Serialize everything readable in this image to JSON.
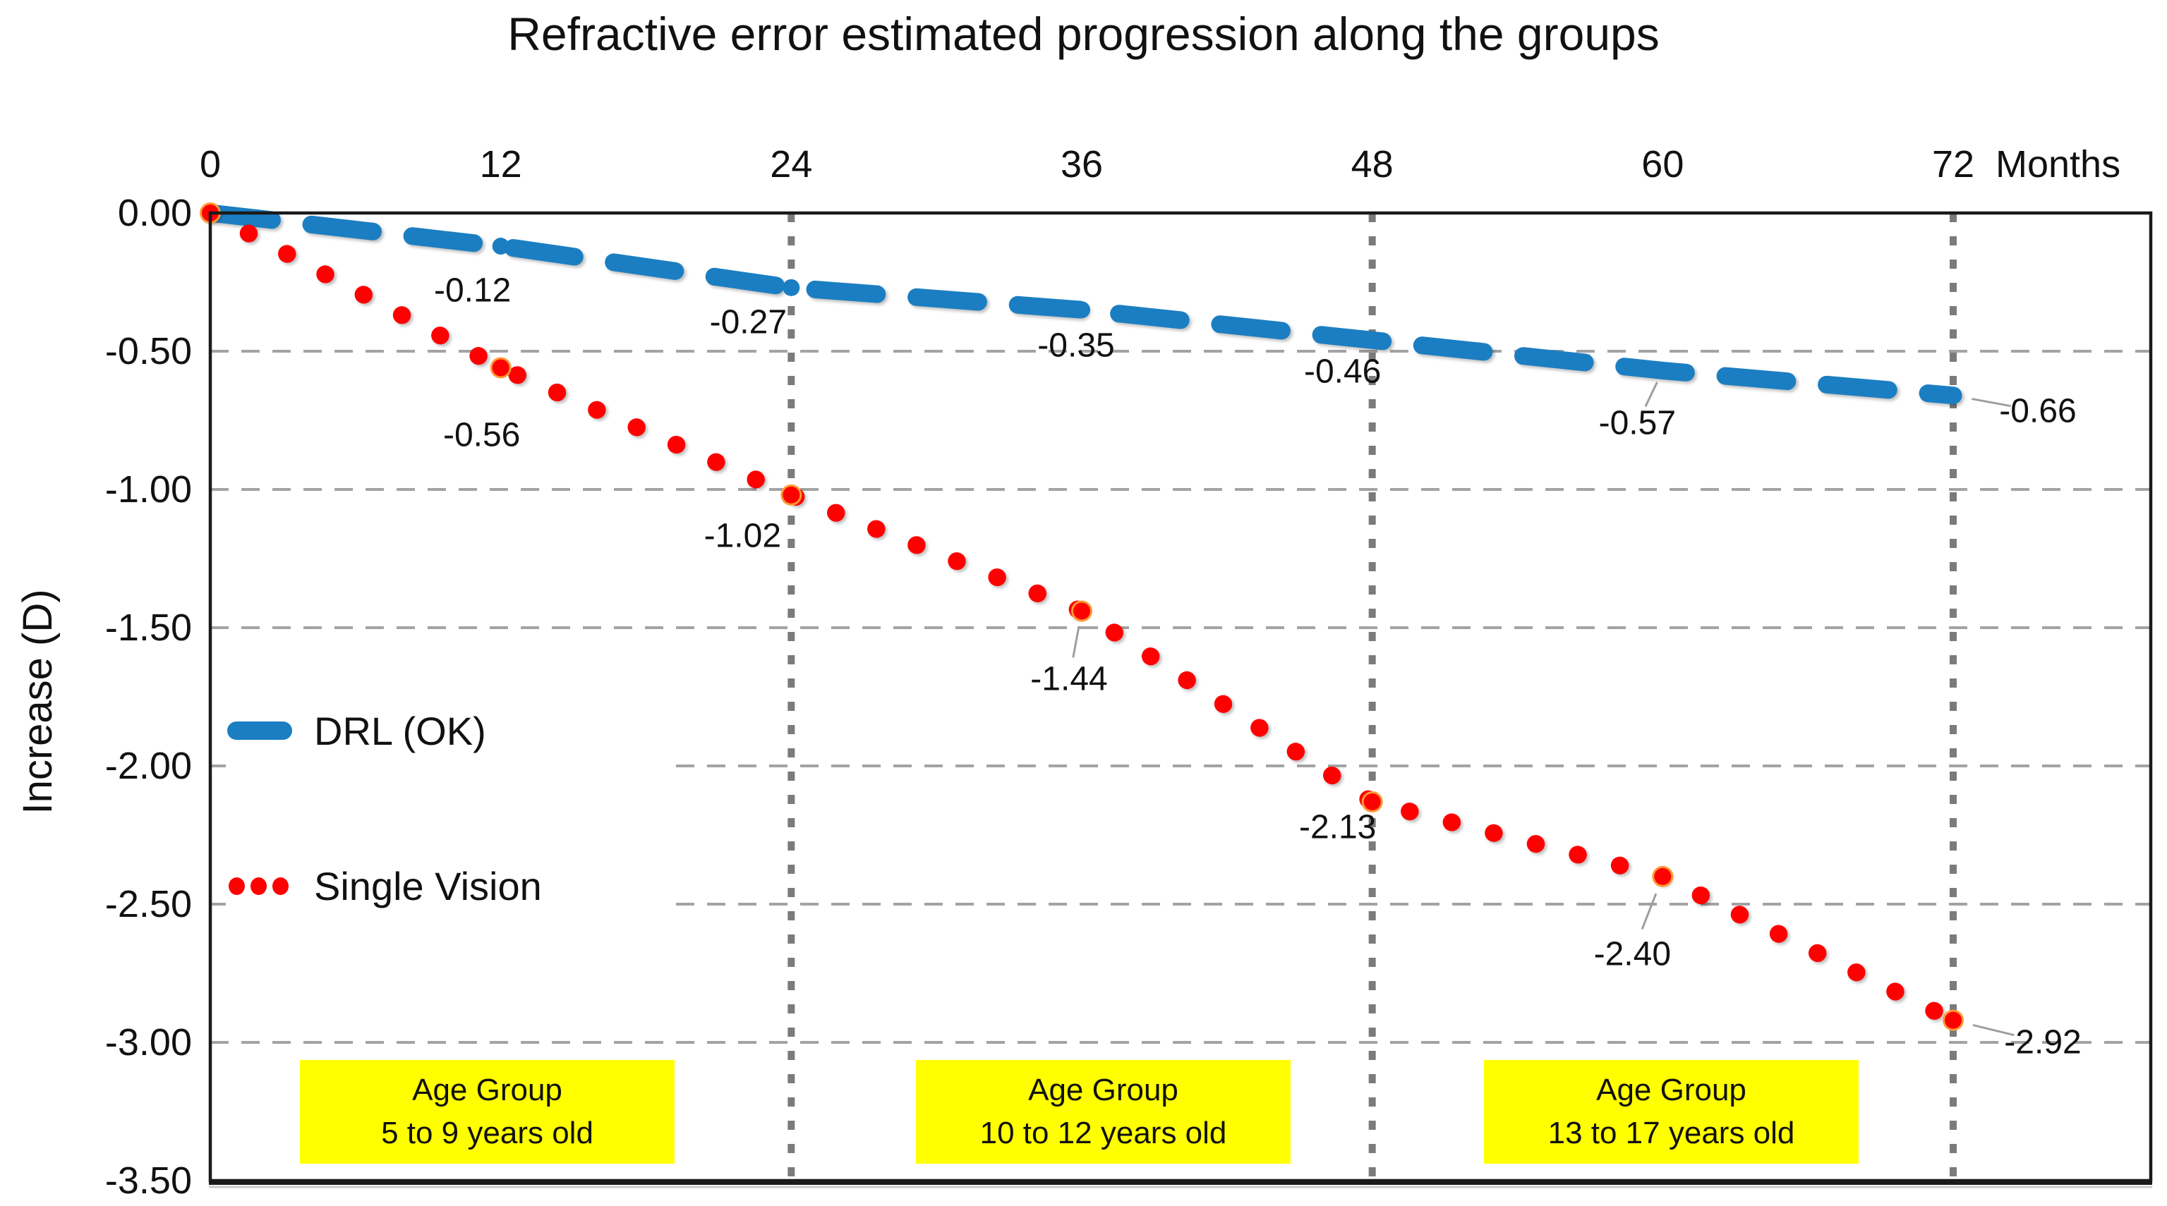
{
  "title": "Refractive error estimated progression along the groups",
  "y_axis": {
    "label": "Increase (D)",
    "ticks": [
      "0.00",
      "-0.50",
      "-1.00",
      "-1.50",
      "-2.00",
      "-2.50",
      "-3.00",
      "-3.50"
    ]
  },
  "x_axis": {
    "unit_label": "Months",
    "ticks": [
      "0",
      "12",
      "24",
      "36",
      "48",
      "60",
      "72"
    ]
  },
  "legend": {
    "items": [
      {
        "label": "DRL (OK)"
      },
      {
        "label": "Single Vision"
      }
    ]
  },
  "age_groups": [
    {
      "line1": "Age Group",
      "line2": "5 to 9 years old"
    },
    {
      "line1": "Age Group",
      "line2": "10 to 12 years old"
    },
    {
      "line1": "Age Group",
      "line2": "13 to 17 years old"
    }
  ],
  "colors": {
    "drl_blue": "#1b7ec2",
    "single_vision_red": "#fe0000",
    "point_highlight_orange": "#ff9933",
    "gridline_gray": "#a3a3a3",
    "guide_gray": "#7b7b7b",
    "leader_gray": "#9e9e9e",
    "age_box_yellow": "#ffff00",
    "text_black": "#111111"
  },
  "chart_data": {
    "type": "line",
    "title": "Refractive error estimated progression along the groups",
    "xlabel": "Months",
    "ylabel": "Increase (D)",
    "x": [
      0,
      12,
      24,
      36,
      48,
      60,
      72
    ],
    "xlim": [
      0,
      80.2
    ],
    "ylim": [
      -3.5,
      0
    ],
    "x_ticks": [
      0,
      12,
      24,
      36,
      48,
      60,
      72
    ],
    "y_tick_values": [
      0,
      -0.5,
      -1,
      -1.5,
      -2,
      -2.5,
      -3,
      -3.5
    ],
    "y_gridlines": [
      -0.5,
      -1,
      -1.5,
      -2,
      -2.5,
      -3
    ],
    "vertical_guides": [
      24,
      48,
      72
    ],
    "grid": true,
    "legend_position": "inside-left",
    "series": [
      {
        "name": "DRL (OK)",
        "style": "dashed",
        "color": "#1b7ec2",
        "values": [
          0,
          -0.12,
          -0.27,
          -0.35,
          -0.46,
          -0.57,
          -0.66
        ],
        "point_labels": [
          "",
          "-0.12",
          "-0.27",
          "-0.35",
          "-0.46",
          "-0.57",
          "-0.66"
        ]
      },
      {
        "name": "Single Vision",
        "style": "dotted",
        "color": "#fe0000",
        "highlight_marker_color": "#ff9933",
        "values": [
          0,
          -0.56,
          -1.02,
          -1.44,
          -2.13,
          -2.4,
          -2.92
        ],
        "point_labels": [
          "",
          "-0.56",
          "-1.02",
          "-1.44",
          "-2.13",
          "-2.40",
          "-2.92"
        ]
      }
    ]
  }
}
